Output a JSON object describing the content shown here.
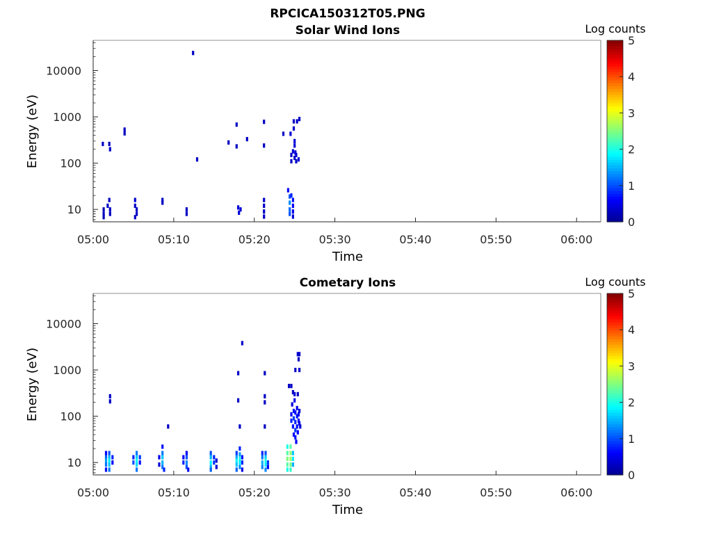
{
  "figure": {
    "title": "RPCICA150312T05.PNG"
  },
  "colormap": [
    "#00008f",
    "#0000ff",
    "#0080ff",
    "#00ffff",
    "#80ff80",
    "#ffff00",
    "#ff8000",
    "#ff0000",
    "#800000"
  ],
  "chart_data": [
    {
      "type": "heatmap",
      "title": "Solar Wind Ions",
      "xlabel": "Time",
      "ylabel": "Energy (eV)",
      "x_ticks": [
        "05:00",
        "05:10",
        "05:20",
        "05:30",
        "05:40",
        "05:50",
        "06:00"
      ],
      "y_ticks": [
        "10",
        "100",
        "1000",
        "10000"
      ],
      "y_scale": "log",
      "colorbar": {
        "label": "Log counts",
        "ticks": [
          "0",
          "1",
          "2",
          "3",
          "4",
          "5"
        ],
        "range": [
          0,
          5
        ]
      },
      "points": [
        [
          1.3,
          10,
          0.2
        ],
        [
          1.3,
          8,
          0.3
        ],
        [
          1.3,
          6.8,
          0.2
        ],
        [
          1.8,
          12,
          0.3
        ],
        [
          2.0,
          16,
          0.3
        ],
        [
          2.1,
          10,
          0.3
        ],
        [
          2.1,
          8,
          0.3
        ],
        [
          1.2,
          260,
          0.3
        ],
        [
          2.0,
          260,
          0.3
        ],
        [
          2.1,
          200,
          0.3
        ],
        [
          3.9,
          530,
          0.3
        ],
        [
          3.9,
          440,
          0.3
        ],
        [
          5.2,
          16,
          0.4
        ],
        [
          5.2,
          12,
          0.3
        ],
        [
          5.4,
          10,
          0.3
        ],
        [
          5.4,
          8,
          0.3
        ],
        [
          5.2,
          6.8,
          0.3
        ],
        [
          8.6,
          16,
          0.3
        ],
        [
          8.6,
          14,
          0.3
        ],
        [
          11.6,
          10,
          0.3
        ],
        [
          11.6,
          8,
          0.3
        ],
        [
          12.4,
          24000,
          0.3
        ],
        [
          12.9,
          120,
          0.3
        ],
        [
          16.8,
          280,
          0.3
        ],
        [
          17.8,
          680,
          0.3
        ],
        [
          17.8,
          230,
          0.3
        ],
        [
          18.0,
          11,
          0.4
        ],
        [
          18.1,
          8.5,
          0.4
        ],
        [
          18.3,
          10,
          0.4
        ],
        [
          19.1,
          330,
          0.3
        ],
        [
          21.2,
          780,
          0.3
        ],
        [
          21.2,
          240,
          0.3
        ],
        [
          21.2,
          16,
          0.3
        ],
        [
          21.2,
          12,
          0.3
        ],
        [
          21.2,
          9,
          0.3
        ],
        [
          21.2,
          7,
          0.3
        ],
        [
          23.6,
          430,
          0.3
        ],
        [
          24.4,
          19,
          1.0
        ],
        [
          24.4,
          14,
          1.3
        ],
        [
          24.4,
          10,
          1.1
        ],
        [
          24.4,
          8,
          1.0
        ],
        [
          24.2,
          26,
          0.6
        ],
        [
          24.6,
          20,
          0.8
        ],
        [
          24.8,
          16,
          0.7
        ],
        [
          24.8,
          12,
          0.6
        ],
        [
          24.8,
          9,
          0.5
        ],
        [
          24.8,
          7,
          0.4
        ],
        [
          24.5,
          430,
          0.4
        ],
        [
          24.6,
          150,
          0.3
        ],
        [
          24.6,
          110,
          0.3
        ],
        [
          24.8,
          180,
          0.4
        ],
        [
          24.9,
          560,
          0.3
        ],
        [
          25.0,
          300,
          0.4
        ],
        [
          25.0,
          240,
          0.4
        ],
        [
          25.0,
          130,
          0.3
        ],
        [
          25.2,
          150,
          0.4
        ],
        [
          25.2,
          110,
          0.3
        ],
        [
          25.3,
          800,
          0.3
        ],
        [
          25.5,
          120,
          0.4
        ],
        [
          25.6,
          900,
          0.3
        ],
        [
          24.9,
          800,
          0.3
        ],
        [
          25.1,
          170,
          0.4
        ]
      ]
    },
    {
      "type": "heatmap",
      "title": "Cometary Ions",
      "xlabel": "Time",
      "ylabel": "Energy (eV)",
      "x_ticks": [
        "05:00",
        "05:10",
        "05:20",
        "05:30",
        "05:40",
        "05:50",
        "06:00"
      ],
      "y_ticks": [
        "10",
        "100",
        "1000",
        "10000"
      ],
      "y_scale": "log",
      "colorbar": {
        "label": "Log counts",
        "ticks": [
          "0",
          "1",
          "2",
          "3",
          "4",
          "5"
        ],
        "range": [
          0,
          5
        ]
      },
      "points": [
        [
          1.6,
          16,
          0.6
        ],
        [
          1.6,
          13,
          1.1
        ],
        [
          1.6,
          11,
          1.4
        ],
        [
          1.6,
          9,
          1.2
        ],
        [
          1.6,
          7,
          0.7
        ],
        [
          2.0,
          16,
          1.0
        ],
        [
          2.0,
          13,
          1.5
        ],
        [
          2.0,
          11,
          1.8
        ],
        [
          2.0,
          9,
          1.6
        ],
        [
          2.0,
          7,
          1.2
        ],
        [
          2.4,
          13,
          0.8
        ],
        [
          2.4,
          10,
          0.6
        ],
        [
          2.1,
          270,
          0.3
        ],
        [
          2.1,
          210,
          0.3
        ],
        [
          5.0,
          13,
          0.8
        ],
        [
          5.0,
          10,
          1.0
        ],
        [
          5.4,
          16,
          1.2
        ],
        [
          5.4,
          13,
          1.6
        ],
        [
          5.4,
          11,
          1.9
        ],
        [
          5.4,
          9,
          1.7
        ],
        [
          5.4,
          7,
          1.2
        ],
        [
          5.8,
          13,
          0.9
        ],
        [
          5.8,
          10,
          0.7
        ],
        [
          8.2,
          13,
          0.5
        ],
        [
          8.2,
          9,
          0.4
        ],
        [
          8.6,
          22,
          0.7
        ],
        [
          8.6,
          16,
          1.2
        ],
        [
          8.6,
          13,
          1.6
        ],
        [
          8.6,
          10,
          1.5
        ],
        [
          8.6,
          8,
          1.2
        ],
        [
          8.8,
          7,
          0.8
        ],
        [
          9.3,
          60,
          0.3
        ],
        [
          11.2,
          13,
          0.6
        ],
        [
          11.2,
          10,
          0.8
        ],
        [
          11.6,
          16,
          0.6
        ],
        [
          11.6,
          13,
          1.0
        ],
        [
          11.6,
          10,
          1.3
        ],
        [
          11.6,
          8,
          1.0
        ],
        [
          11.8,
          7,
          0.6
        ],
        [
          14.6,
          16,
          1.0
        ],
        [
          14.6,
          13,
          1.5
        ],
        [
          14.6,
          10,
          1.8
        ],
        [
          14.6,
          8,
          1.5
        ],
        [
          14.6,
          7,
          1.1
        ],
        [
          15.0,
          13,
          0.8
        ],
        [
          15.0,
          10,
          0.9
        ],
        [
          15.3,
          11,
          0.4
        ],
        [
          15.3,
          8,
          0.4
        ],
        [
          17.8,
          16,
          0.9
        ],
        [
          17.8,
          13,
          1.4
        ],
        [
          17.8,
          11,
          1.8
        ],
        [
          17.8,
          9,
          1.6
        ],
        [
          17.8,
          7,
          1.1
        ],
        [
          18.2,
          20,
          0.8
        ],
        [
          18.2,
          15,
          1.4
        ],
        [
          18.2,
          12,
          2.0
        ],
        [
          18.2,
          10,
          1.8
        ],
        [
          18.2,
          8,
          1.3
        ],
        [
          18.5,
          13,
          0.7
        ],
        [
          18.5,
          10,
          0.8
        ],
        [
          18.5,
          7,
          0.5
        ],
        [
          18.0,
          850,
          0.3
        ],
        [
          18.0,
          220,
          0.3
        ],
        [
          18.2,
          60,
          0.3
        ],
        [
          18.5,
          3800,
          0.3
        ],
        [
          21.0,
          16,
          0.8
        ],
        [
          21.0,
          13,
          1.2
        ],
        [
          21.0,
          10,
          1.5
        ],
        [
          21.0,
          8,
          1.3
        ],
        [
          21.4,
          16,
          1.0
        ],
        [
          21.4,
          13,
          1.6
        ],
        [
          21.4,
          11,
          2.0
        ],
        [
          21.4,
          9,
          1.8
        ],
        [
          21.4,
          7,
          1.3
        ],
        [
          21.7,
          10,
          0.9
        ],
        [
          21.7,
          8,
          0.6
        ],
        [
          21.3,
          850,
          0.3
        ],
        [
          21.3,
          270,
          0.3
        ],
        [
          21.3,
          200,
          0.3
        ],
        [
          21.3,
          60,
          0.3
        ],
        [
          24.1,
          22,
          2.0
        ],
        [
          24.1,
          16,
          2.3
        ],
        [
          24.1,
          12,
          2.5
        ],
        [
          24.1,
          9,
          2.3
        ],
        [
          24.1,
          7,
          2.0
        ],
        [
          24.5,
          22,
          2.3
        ],
        [
          24.5,
          16,
          2.6
        ],
        [
          24.5,
          12,
          2.7
        ],
        [
          24.5,
          9,
          2.5
        ],
        [
          24.5,
          7,
          2.1
        ],
        [
          24.8,
          16,
          1.6
        ],
        [
          24.8,
          12,
          1.8
        ],
        [
          24.8,
          9,
          1.5
        ],
        [
          24.3,
          450,
          0.3
        ],
        [
          24.6,
          450,
          0.3
        ],
        [
          24.7,
          180,
          0.4
        ],
        [
          24.6,
          110,
          0.6
        ],
        [
          24.6,
          80,
          0.8
        ],
        [
          24.8,
          60,
          0.7
        ],
        [
          24.9,
          130,
          0.7
        ],
        [
          24.9,
          90,
          0.9
        ],
        [
          24.9,
          40,
          0.6
        ],
        [
          25.0,
          300,
          0.4
        ],
        [
          25.0,
          220,
          0.5
        ],
        [
          25.1,
          120,
          0.7
        ],
        [
          25.1,
          75,
          0.8
        ],
        [
          25.1,
          50,
          0.9
        ],
        [
          25.1,
          35,
          0.7
        ],
        [
          25.2,
          28,
          0.6
        ],
        [
          25.3,
          150,
          0.5
        ],
        [
          25.3,
          100,
          0.7
        ],
        [
          25.3,
          60,
          0.7
        ],
        [
          25.4,
          45,
          0.6
        ],
        [
          25.5,
          80,
          0.6
        ],
        [
          25.5,
          110,
          0.5
        ],
        [
          25.6,
          130,
          0.4
        ],
        [
          25.6,
          70,
          0.5
        ],
        [
          25.7,
          60,
          0.4
        ],
        [
          25.1,
          1000,
          0.3
        ],
        [
          25.6,
          1000,
          0.3
        ],
        [
          25.4,
          2200,
          0.4
        ],
        [
          25.6,
          2200,
          0.3
        ],
        [
          25.5,
          1700,
          0.3
        ],
        [
          24.8,
          330,
          0.3
        ],
        [
          25.4,
          300,
          0.3
        ]
      ]
    }
  ]
}
